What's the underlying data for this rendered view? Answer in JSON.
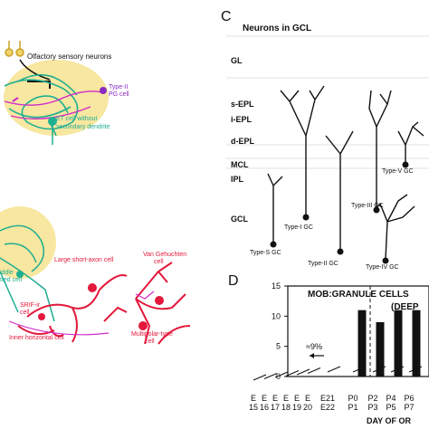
{
  "panel_a": {
    "label_olfactory": "Olfactory sensory neurons",
    "label_pg_type": "Type-II",
    "label_pg_cell": "PG cell",
    "label_et_line1": "ET cell without",
    "label_et_line2": "secondary dendrite"
  },
  "panel_b": {
    "label_large_sa": "Large short-axon cell",
    "label_van_line1": "Van Gehuchten",
    "label_van_line2": "cell",
    "label_middle_1": "iddle",
    "label_middle_2": "tted cell",
    "label_srif": "SRIF-ir",
    "label_srif2": "cell",
    "label_inner_horizontal": "Inner horizontal cell",
    "label_multipolar_line1": "Multipolar-type",
    "label_multipolar_line2": "cell"
  },
  "panel_c": {
    "letter": "C",
    "title": "Neurons in GCL",
    "layers": [
      "GL",
      "s-EPL",
      "i-EPL",
      "d-EPL",
      "MCL",
      "IPL",
      "GCL"
    ],
    "cell_types": [
      "Type-S GC",
      "Type-I GC",
      "Type-II GC",
      "Type-III GC",
      "Type-IV GC",
      "Type-V GC"
    ]
  },
  "panel_d": {
    "letter": "D",
    "title": "MOB:GRANULE CELLS",
    "subtitle": "(DEEP",
    "percent_label": "≈9%",
    "x_axis_label": "DAY OF OR",
    "chart_data": {
      "type": "bar",
      "title": "MOB:GRANULE CELLS",
      "ylim": [
        0,
        15
      ],
      "yticks": [
        "0",
        "5",
        "10",
        "15"
      ],
      "categories": [
        "E15",
        "E16",
        "E17",
        "E18",
        "E19",
        "E20",
        "E21/E22",
        "P0/P1",
        "P2/P3",
        "P4/P5",
        "P6/P7"
      ],
      "values": [
        0.3,
        0.4,
        0.5,
        0.6,
        0.7,
        0.8,
        0.9,
        11,
        9,
        11,
        11
      ],
      "tick_top": [
        "E",
        "E",
        "E",
        "E",
        "E",
        "E",
        "E21",
        "P0",
        "P2",
        "P4",
        "P6"
      ],
      "tick_bottom": [
        "15",
        "16",
        "17",
        "18",
        "19",
        "20",
        "E22",
        "P1",
        "P3",
        "P5",
        "P7"
      ]
    }
  }
}
